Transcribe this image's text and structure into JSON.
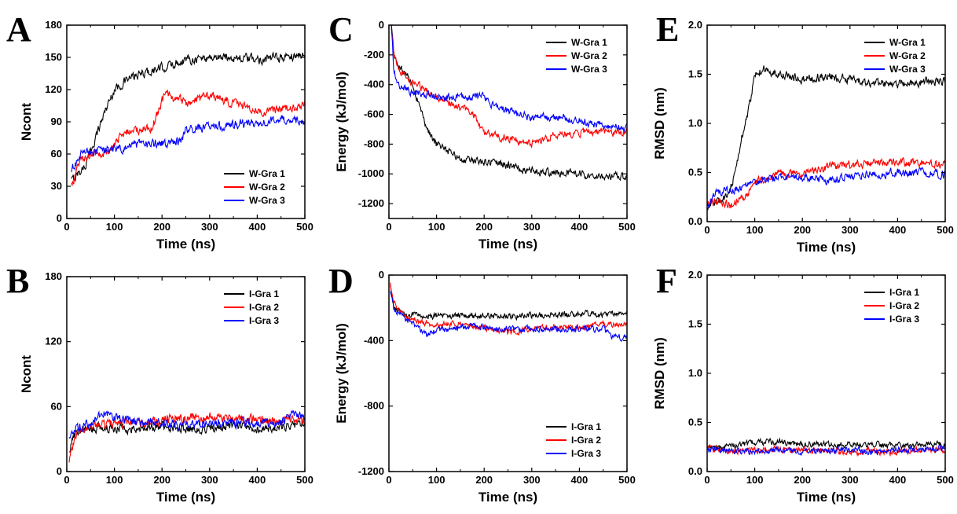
{
  "chart_data": [
    {
      "panel": "A",
      "type": "line",
      "xlabel": "Time (ns)",
      "ylabel": "Ncont",
      "xlim": [
        0,
        500
      ],
      "ylim": [
        0,
        180
      ],
      "xticks": [
        0,
        100,
        200,
        300,
        400,
        500
      ],
      "yticks": [
        0,
        30,
        60,
        90,
        120,
        150,
        180
      ],
      "legend": "bottom-right",
      "noise": 4,
      "series": [
        {
          "name": "W-Gra 1",
          "color": "#000000",
          "x": [
            10,
            20,
            40,
            60,
            80,
            100,
            130,
            160,
            200,
            250,
            300,
            350,
            400,
            450,
            500
          ],
          "y": [
            35,
            40,
            50,
            75,
            100,
            120,
            130,
            135,
            140,
            148,
            150,
            150,
            148,
            150,
            152
          ]
        },
        {
          "name": "W-Gra 2",
          "color": "#ff0000",
          "x": [
            10,
            30,
            60,
            90,
            120,
            150,
            180,
            200,
            210,
            250,
            300,
            350,
            400,
            450,
            500
          ],
          "y": [
            30,
            55,
            60,
            62,
            80,
            82,
            85,
            110,
            115,
            108,
            115,
            108,
            100,
            102,
            105
          ]
        },
        {
          "name": "W-Gra 3",
          "color": "#0000ff",
          "x": [
            10,
            30,
            60,
            100,
            150,
            200,
            240,
            250,
            300,
            350,
            400,
            450,
            500
          ],
          "y": [
            45,
            60,
            62,
            65,
            68,
            70,
            72,
            82,
            85,
            87,
            90,
            92,
            90
          ]
        }
      ]
    },
    {
      "panel": "B",
      "type": "line",
      "xlabel": "Time (ns)",
      "ylabel": "Ncont",
      "xlim": [
        0,
        500
      ],
      "ylim": [
        0,
        180
      ],
      "xticks": [
        0,
        100,
        200,
        300,
        400,
        500
      ],
      "yticks": [
        0,
        60,
        120,
        180
      ],
      "legend": "top-right",
      "noise": 4,
      "series": [
        {
          "name": "I-Gra 1",
          "color": "#000000",
          "x": [
            5,
            20,
            50,
            100,
            150,
            200,
            250,
            300,
            350,
            400,
            450,
            500
          ],
          "y": [
            20,
            38,
            40,
            40,
            40,
            42,
            40,
            40,
            42,
            40,
            40,
            45
          ]
        },
        {
          "name": "I-Gra 2",
          "color": "#ff0000",
          "x": [
            5,
            20,
            50,
            100,
            150,
            200,
            250,
            300,
            350,
            400,
            450,
            500
          ],
          "y": [
            10,
            35,
            42,
            45,
            45,
            48,
            50,
            50,
            48,
            48,
            47,
            48
          ]
        },
        {
          "name": "I-Gra 3",
          "color": "#0000ff",
          "x": [
            5,
            20,
            50,
            80,
            100,
            150,
            200,
            250,
            300,
            350,
            400,
            450,
            480,
            500
          ],
          "y": [
            30,
            40,
            45,
            55,
            50,
            45,
            45,
            43,
            45,
            45,
            45,
            45,
            55,
            50
          ]
        }
      ]
    },
    {
      "panel": "C",
      "type": "line",
      "xlabel": "Time (ns)",
      "ylabel": "Energy (kJ/mol)",
      "xlim": [
        0,
        500
      ],
      "ylim": [
        -1300,
        0
      ],
      "xticks": [
        0,
        100,
        200,
        300,
        400,
        500
      ],
      "yticks": [
        -1200,
        -1000,
        -800,
        -600,
        -400,
        -200,
        0
      ],
      "legend": "top-right",
      "noise": 25,
      "series": [
        {
          "name": "W-Gra 1",
          "color": "#000000",
          "x": [
            5,
            10,
            20,
            40,
            60,
            80,
            100,
            150,
            200,
            250,
            300,
            350,
            400,
            450,
            500
          ],
          "y": [
            0,
            -200,
            -280,
            -350,
            -500,
            -700,
            -800,
            -900,
            -920,
            -940,
            -980,
            -1000,
            -1000,
            -1020,
            -1020
          ]
        },
        {
          "name": "W-Gra 2",
          "color": "#ff0000",
          "x": [
            5,
            10,
            20,
            50,
            100,
            150,
            180,
            200,
            250,
            300,
            350,
            400,
            450,
            500
          ],
          "y": [
            0,
            -200,
            -300,
            -380,
            -480,
            -550,
            -600,
            -730,
            -760,
            -800,
            -740,
            -720,
            -720,
            -720
          ]
        },
        {
          "name": "W-Gra 3",
          "color": "#0000ff",
          "x": [
            5,
            10,
            20,
            50,
            100,
            150,
            200,
            220,
            250,
            300,
            350,
            400,
            450,
            500
          ],
          "y": [
            0,
            -300,
            -400,
            -450,
            -480,
            -480,
            -480,
            -540,
            -580,
            -620,
            -620,
            -640,
            -680,
            -680
          ]
        }
      ]
    },
    {
      "panel": "D",
      "type": "line",
      "xlabel": "Time (ns)",
      "ylabel": "Energy (kJ/mol)",
      "xlim": [
        0,
        500
      ],
      "ylim": [
        -1200,
        0
      ],
      "xticks": [
        0,
        100,
        200,
        300,
        400,
        500
      ],
      "yticks": [
        -1200,
        -800,
        -400,
        0
      ],
      "legend": "bottom-right",
      "noise": 18,
      "series": [
        {
          "name": "I-Gra 1",
          "color": "#000000",
          "x": [
            3,
            10,
            30,
            60,
            100,
            150,
            200,
            250,
            300,
            350,
            400,
            450,
            500
          ],
          "y": [
            -50,
            -200,
            -240,
            -250,
            -250,
            -250,
            -250,
            -250,
            -250,
            -240,
            -240,
            -240,
            -240
          ]
        },
        {
          "name": "I-Gra 2",
          "color": "#ff0000",
          "x": [
            3,
            10,
            30,
            60,
            100,
            150,
            200,
            250,
            300,
            350,
            400,
            450,
            500
          ],
          "y": [
            -50,
            -150,
            -250,
            -280,
            -300,
            -300,
            -320,
            -350,
            -330,
            -320,
            -320,
            -300,
            -300
          ]
        },
        {
          "name": "I-Gra 3",
          "color": "#0000ff",
          "x": [
            3,
            10,
            30,
            60,
            80,
            100,
            150,
            200,
            250,
            300,
            350,
            400,
            450,
            470,
            500
          ],
          "y": [
            -100,
            -200,
            -260,
            -320,
            -360,
            -340,
            -320,
            -320,
            -330,
            -330,
            -330,
            -330,
            -330,
            -380,
            -380
          ]
        }
      ]
    },
    {
      "panel": "E",
      "type": "line",
      "xlabel": "Time (ns)",
      "ylabel": "RMSD (nm)",
      "xlim": [
        0,
        500
      ],
      "ylim": [
        0,
        2.0
      ],
      "xticks": [
        0,
        100,
        200,
        300,
        400,
        500
      ],
      "yticks": [
        0.0,
        0.5,
        1.0,
        1.5,
        2.0
      ],
      "legend": "top-right",
      "noise": 0.04,
      "series": [
        {
          "name": "W-Gra 1",
          "color": "#000000",
          "x": [
            0,
            20,
            40,
            60,
            70,
            80,
            90,
            100,
            120,
            150,
            200,
            250,
            300,
            350,
            400,
            450,
            500
          ],
          "y": [
            0.15,
            0.2,
            0.25,
            0.5,
            0.8,
            1.0,
            1.2,
            1.5,
            1.55,
            1.5,
            1.45,
            1.48,
            1.45,
            1.42,
            1.4,
            1.42,
            1.43
          ]
        },
        {
          "name": "W-Gra 2",
          "color": "#ff0000",
          "x": [
            0,
            20,
            50,
            80,
            100,
            150,
            200,
            250,
            300,
            350,
            400,
            450,
            500
          ],
          "y": [
            0.2,
            0.2,
            0.18,
            0.25,
            0.4,
            0.48,
            0.5,
            0.55,
            0.58,
            0.6,
            0.6,
            0.6,
            0.58
          ]
        },
        {
          "name": "W-Gra 3",
          "color": "#0000ff",
          "x": [
            0,
            20,
            50,
            80,
            100,
            150,
            200,
            250,
            300,
            350,
            400,
            450,
            500
          ],
          "y": [
            0.15,
            0.3,
            0.32,
            0.35,
            0.4,
            0.45,
            0.45,
            0.42,
            0.45,
            0.48,
            0.5,
            0.5,
            0.48
          ]
        }
      ]
    },
    {
      "panel": "F",
      "type": "line",
      "xlabel": "Time (ns)",
      "ylabel": "RMSD (nm)",
      "xlim": [
        0,
        500
      ],
      "ylim": [
        0,
        2.0
      ],
      "xticks": [
        0,
        100,
        200,
        300,
        400,
        500
      ],
      "yticks": [
        0.0,
        0.5,
        1.0,
        1.5,
        2.0
      ],
      "legend": "top-right",
      "noise": 0.03,
      "series": [
        {
          "name": "I-Gra 1",
          "color": "#000000",
          "x": [
            0,
            20,
            50,
            80,
            100,
            150,
            200,
            250,
            300,
            350,
            400,
            450,
            500
          ],
          "y": [
            0.25,
            0.25,
            0.25,
            0.28,
            0.3,
            0.3,
            0.28,
            0.28,
            0.28,
            0.28,
            0.27,
            0.27,
            0.28
          ]
        },
        {
          "name": "I-Gra 2",
          "color": "#ff0000",
          "x": [
            0,
            20,
            50,
            100,
            150,
            200,
            250,
            300,
            350,
            400,
            450,
            500
          ],
          "y": [
            0.25,
            0.22,
            0.2,
            0.22,
            0.22,
            0.22,
            0.22,
            0.2,
            0.2,
            0.2,
            0.22,
            0.22
          ]
        },
        {
          "name": "I-Gra 3",
          "color": "#0000ff",
          "x": [
            0,
            20,
            50,
            100,
            150,
            200,
            250,
            300,
            350,
            400,
            450,
            500
          ],
          "y": [
            0.2,
            0.22,
            0.22,
            0.2,
            0.22,
            0.2,
            0.22,
            0.22,
            0.2,
            0.22,
            0.22,
            0.25
          ]
        }
      ]
    }
  ]
}
